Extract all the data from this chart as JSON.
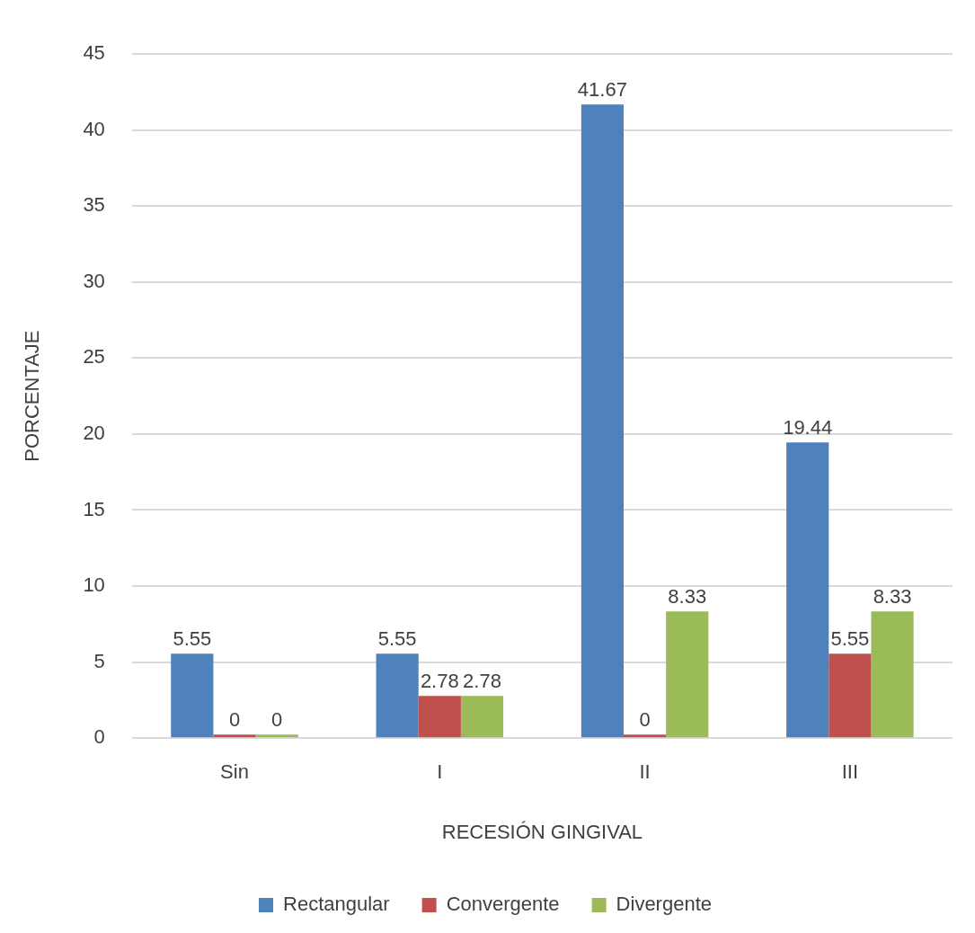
{
  "chart_data": {
    "type": "bar",
    "xlabel": "RECESIÓN GINGIVAL",
    "ylabel": "PORCENTAJE",
    "categories": [
      "Sin",
      "I",
      "II",
      "III"
    ],
    "series": [
      {
        "name": "Rectangular",
        "color": "#4f81bd",
        "values": [
          5.55,
          5.55,
          41.67,
          19.44
        ]
      },
      {
        "name": "Convergente",
        "color": "#c0504d",
        "values": [
          0,
          2.78,
          0,
          5.55
        ]
      },
      {
        "name": "Divergente",
        "color": "#9bbb59",
        "values": [
          0,
          2.78,
          8.33,
          8.33
        ]
      }
    ],
    "ylim": [
      0,
      45
    ],
    "yticks": [
      0,
      5,
      10,
      15,
      20,
      25,
      30,
      35,
      40,
      45
    ],
    "grid": "y",
    "legend": "bottom",
    "data_labels": true
  }
}
